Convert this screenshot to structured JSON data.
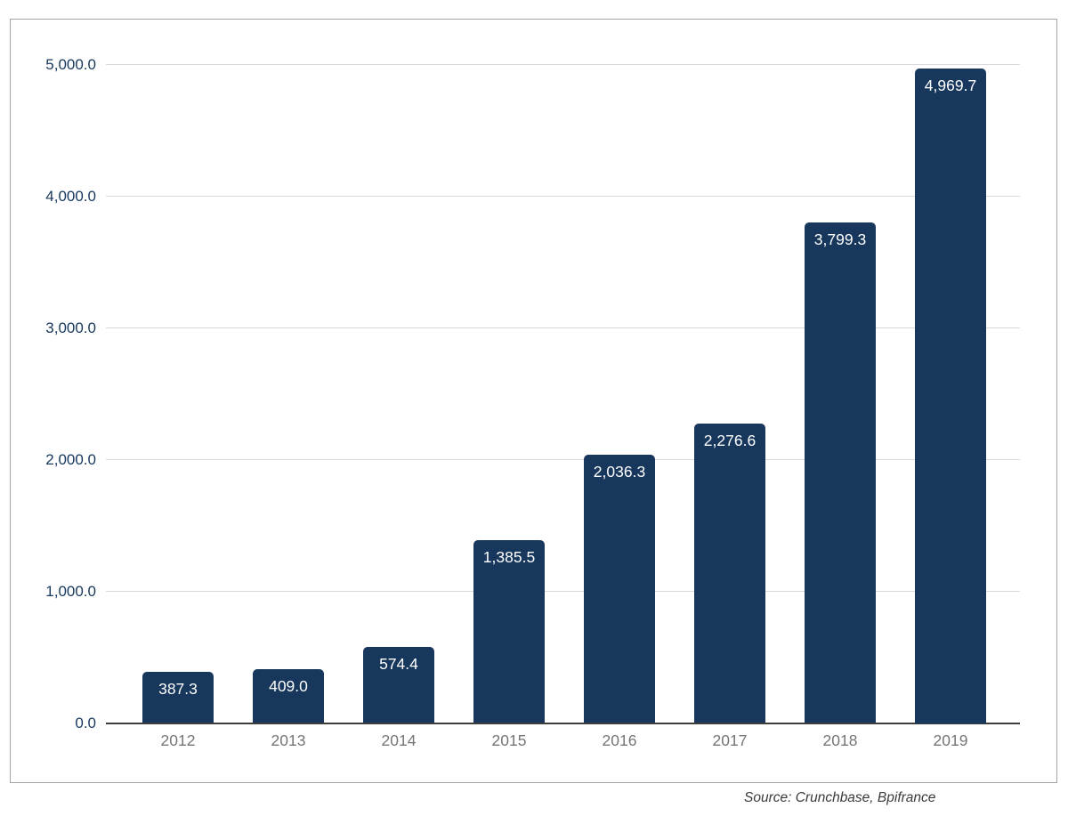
{
  "chart_data": {
    "type": "bar",
    "categories": [
      "2012",
      "2013",
      "2014",
      "2015",
      "2016",
      "2017",
      "2018",
      "2019"
    ],
    "values": [
      387.3,
      409.0,
      574.4,
      1385.5,
      2036.3,
      2276.6,
      3799.3,
      4969.7
    ],
    "value_labels": [
      "387.3",
      "409.0",
      "574.4",
      "1,385.5",
      "2,036.3",
      "2,276.6",
      "3,799.3",
      "4,969.7"
    ],
    "title": "",
    "xlabel": "",
    "ylabel": "",
    "ylim": [
      0,
      5000
    ],
    "ytick_interval": 1000,
    "ytick_labels": [
      "0.0",
      "1,000.0",
      "2,000.0",
      "3,000.0",
      "4,000.0",
      "5,000.0"
    ],
    "grid": true,
    "legend": false,
    "bar_color": "#17375c",
    "value_label_color": "#ffffff",
    "ytick_color": "#17375c",
    "xtick_color": "#757575",
    "gridline_color": "#d9d9d9",
    "baseline_color": "#3c3c3c"
  },
  "source_note": "Source: Crunchbase, Bpifrance"
}
